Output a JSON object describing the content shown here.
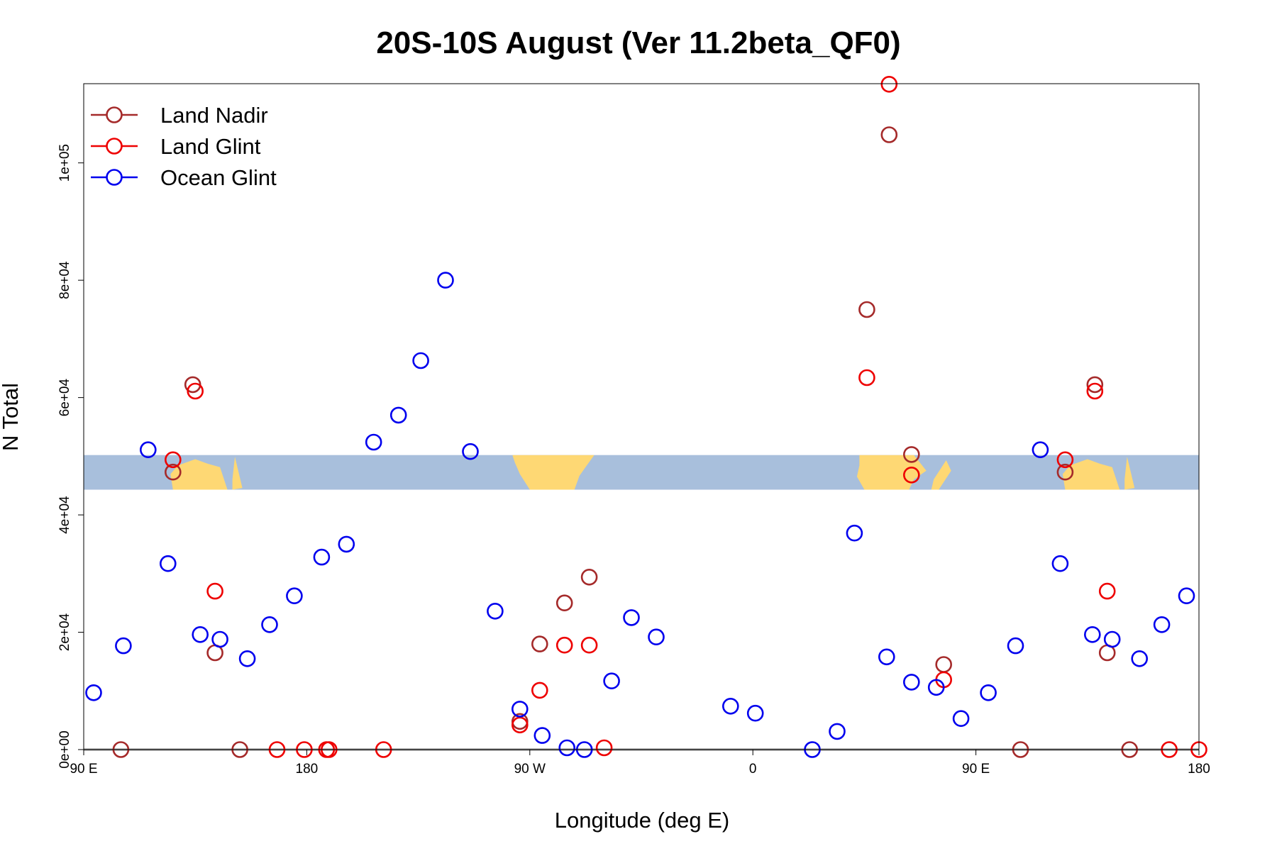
{
  "chart_data": {
    "type": "scatter",
    "title": "20S-10S August (Ver 11.2beta_QF0)",
    "xlabel": "Longitude (deg E)",
    "ylabel": "N Total",
    "x_unit": "degrees longitude, unwrapped from 90 E (90) eastward to 180 E (540)",
    "xlim": [
      90,
      540
    ],
    "ylim": [
      0,
      113500
    ],
    "x_ticks": [
      {
        "value": 90,
        "label": "90 E"
      },
      {
        "value": 180,
        "label": "180"
      },
      {
        "value": 270,
        "label": "90 W"
      },
      {
        "value": 360,
        "label": "0"
      },
      {
        "value": 450,
        "label": "90 E"
      },
      {
        "value": 540,
        "label": "180"
      }
    ],
    "y_ticks": [
      {
        "value": 0,
        "label": "0e+00"
      },
      {
        "value": 20000,
        "label": "2e+04"
      },
      {
        "value": 40000,
        "label": "4e+04"
      },
      {
        "value": 60000,
        "label": "6e+04"
      },
      {
        "value": 80000,
        "label": "8e+04"
      },
      {
        "value": 100000,
        "label": "1e+05"
      }
    ],
    "grid": false,
    "legend_position": "top-left",
    "map_strip": {
      "y_range": [
        44300,
        50200
      ],
      "ocean_color": "#a8bfdc",
      "land_color": "#fed874"
    },
    "series": [
      {
        "name": "Land Nadir",
        "color": "#a52a2a",
        "points": [
          {
            "x": 105,
            "y": 0
          },
          {
            "x": 126,
            "y": 47300
          },
          {
            "x": 134,
            "y": 62200
          },
          {
            "x": 143,
            "y": 16500
          },
          {
            "x": 153,
            "y": 0
          },
          {
            "x": 266,
            "y": 4800
          },
          {
            "x": 274,
            "y": 18000
          },
          {
            "x": 284,
            "y": 25000
          },
          {
            "x": 294,
            "y": 29400
          },
          {
            "x": 406,
            "y": 75000
          },
          {
            "x": 415,
            "y": 104800
          },
          {
            "x": 424,
            "y": 50300
          },
          {
            "x": 437,
            "y": 14500
          },
          {
            "x": 468,
            "y": 0
          },
          {
            "x": 486,
            "y": 47300
          },
          {
            "x": 498,
            "y": 62200
          },
          {
            "x": 503,
            "y": 16500
          },
          {
            "x": 512,
            "y": 0
          }
        ]
      },
      {
        "name": "Land Glint",
        "color": "#ee0000",
        "points": [
          {
            "x": 126,
            "y": 49400
          },
          {
            "x": 135,
            "y": 61100
          },
          {
            "x": 143,
            "y": 27000
          },
          {
            "x": 168,
            "y": 0
          },
          {
            "x": 179,
            "y": 0
          },
          {
            "x": 188,
            "y": 0
          },
          {
            "x": 189,
            "y": 0
          },
          {
            "x": 211,
            "y": 0
          },
          {
            "x": 266,
            "y": 4200
          },
          {
            "x": 274,
            "y": 10100
          },
          {
            "x": 284,
            "y": 17800
          },
          {
            "x": 294,
            "y": 17800
          },
          {
            "x": 300,
            "y": 300
          },
          {
            "x": 406,
            "y": 63400
          },
          {
            "x": 415,
            "y": 113400
          },
          {
            "x": 424,
            "y": 46800
          },
          {
            "x": 437,
            "y": 11900
          },
          {
            "x": 486,
            "y": 49400
          },
          {
            "x": 498,
            "y": 61100
          },
          {
            "x": 503,
            "y": 27000
          },
          {
            "x": 528,
            "y": 0
          },
          {
            "x": 540,
            "y": 0
          }
        ]
      },
      {
        "name": "Ocean Glint",
        "color": "#0000ee",
        "points": [
          {
            "x": 94,
            "y": 9700
          },
          {
            "x": 106,
            "y": 17700
          },
          {
            "x": 116,
            "y": 51100
          },
          {
            "x": 124,
            "y": 31700
          },
          {
            "x": 137,
            "y": 19600
          },
          {
            "x": 145,
            "y": 18800
          },
          {
            "x": 156,
            "y": 15500
          },
          {
            "x": 165,
            "y": 21300
          },
          {
            "x": 175,
            "y": 26200
          },
          {
            "x": 186,
            "y": 32800
          },
          {
            "x": 196,
            "y": 35000
          },
          {
            "x": 207,
            "y": 52400
          },
          {
            "x": 217,
            "y": 57000
          },
          {
            "x": 226,
            "y": 66300
          },
          {
            "x": 236,
            "y": 80000
          },
          {
            "x": 246,
            "y": 50800
          },
          {
            "x": 256,
            "y": 23600
          },
          {
            "x": 266,
            "y": 6900
          },
          {
            "x": 275,
            "y": 2400
          },
          {
            "x": 285,
            "y": 300
          },
          {
            "x": 292,
            "y": 0
          },
          {
            "x": 303,
            "y": 11700
          },
          {
            "x": 311,
            "y": 22500
          },
          {
            "x": 321,
            "y": 19200
          },
          {
            "x": 351,
            "y": 7400
          },
          {
            "x": 361,
            "y": 6200
          },
          {
            "x": 384,
            "y": 0
          },
          {
            "x": 394,
            "y": 3100
          },
          {
            "x": 401,
            "y": 36900
          },
          {
            "x": 414,
            "y": 15800
          },
          {
            "x": 424,
            "y": 11500
          },
          {
            "x": 434,
            "y": 10600
          },
          {
            "x": 444,
            "y": 5300
          },
          {
            "x": 455,
            "y": 9700
          },
          {
            "x": 466,
            "y": 17700
          },
          {
            "x": 476,
            "y": 51100
          },
          {
            "x": 484,
            "y": 31700
          },
          {
            "x": 497,
            "y": 19600
          },
          {
            "x": 505,
            "y": 18800
          },
          {
            "x": 516,
            "y": 15500
          },
          {
            "x": 525,
            "y": 21300
          },
          {
            "x": 535,
            "y": 26200
          }
        ]
      }
    ]
  }
}
